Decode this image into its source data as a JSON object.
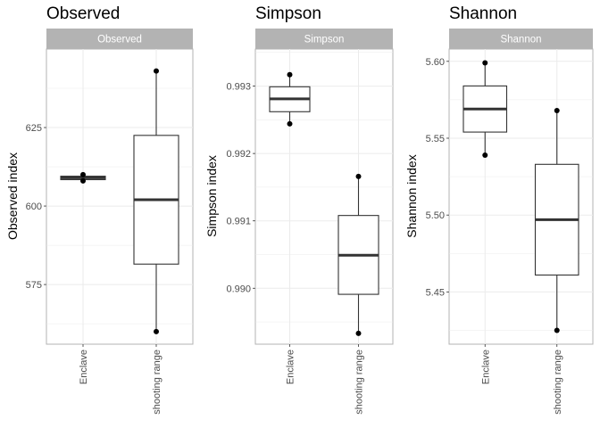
{
  "chart_data": [
    {
      "type": "boxplot",
      "title": "Observed",
      "strip_label": "Observed",
      "ylabel": "Observed index",
      "xlabel": "",
      "categories": [
        "Enclave",
        "shooting range"
      ],
      "ylim": [
        556,
        650
      ],
      "yticks": [
        575,
        600,
        625
      ],
      "grid": true,
      "boxes": [
        {
          "category": "Enclave",
          "min": 608,
          "q1": 608.4,
          "median": 609,
          "q3": 609.5,
          "max": 610,
          "outliers": [
            608,
            610
          ]
        },
        {
          "category": "shooting range",
          "min": 560,
          "q1": 581.5,
          "median": 602,
          "q3": 622.5,
          "max": 643,
          "outliers": [
            560,
            643
          ]
        }
      ]
    },
    {
      "type": "boxplot",
      "title": "Simpson",
      "strip_label": "Simpson",
      "ylabel": "Simpson index",
      "xlabel": "",
      "categories": [
        "Enclave",
        "shooting range"
      ],
      "ylim": [
        0.98917,
        0.99355
      ],
      "yticks": [
        0.99,
        0.991,
        0.992,
        0.993
      ],
      "grid": true,
      "boxes": [
        {
          "category": "Enclave",
          "min": 0.99244,
          "q1": 0.99262,
          "median": 0.99281,
          "q3": 0.99299,
          "max": 0.99317,
          "outliers": [
            0.99244,
            0.99317
          ]
        },
        {
          "category": "shooting range",
          "min": 0.98933,
          "q1": 0.98991,
          "median": 0.99049,
          "q3": 0.99108,
          "max": 0.99166,
          "outliers": [
            0.98933,
            0.99166
          ]
        }
      ]
    },
    {
      "type": "boxplot",
      "title": "Shannon",
      "strip_label": "Shannon",
      "ylabel": "Shannon index",
      "xlabel": "",
      "categories": [
        "Enclave",
        "shooting range"
      ],
      "ylim": [
        5.416,
        5.608
      ],
      "yticks": [
        5.45,
        5.5,
        5.55,
        5.6
      ],
      "grid": true,
      "boxes": [
        {
          "category": "Enclave",
          "min": 5.539,
          "q1": 5.554,
          "median": 5.569,
          "q3": 5.584,
          "max": 5.599,
          "outliers": [
            5.539,
            5.599
          ]
        },
        {
          "category": "shooting range",
          "min": 5.425,
          "q1": 5.461,
          "median": 5.497,
          "q3": 5.533,
          "max": 5.568,
          "outliers": [
            5.425,
            5.568
          ]
        }
      ]
    }
  ]
}
